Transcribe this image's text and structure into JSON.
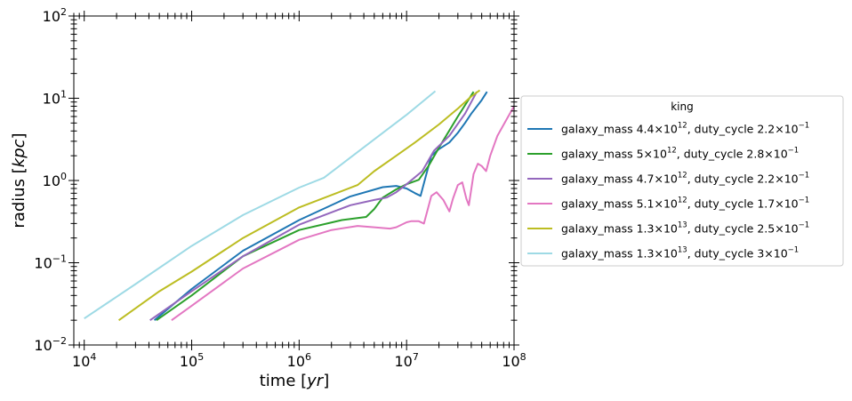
{
  "chart_data": {
    "type": "line",
    "xscale": "log",
    "yscale": "log",
    "xlim": [
      8000,
      100000000
    ],
    "ylim": [
      0.01,
      100
    ],
    "xlabel": {
      "base": "time [",
      "italic": "yr",
      "tail": "]"
    },
    "ylabel": {
      "base": "radius [",
      "italic": "kpc",
      "tail": "]"
    },
    "x_ticks": [
      {
        "value": 10000,
        "mantissa": "10",
        "exp": "4"
      },
      {
        "value": 100000,
        "mantissa": "10",
        "exp": "5"
      },
      {
        "value": 1000000,
        "mantissa": "10",
        "exp": "6"
      },
      {
        "value": 10000000,
        "mantissa": "10",
        "exp": "7"
      },
      {
        "value": 100000000,
        "mantissa": "10",
        "exp": "8"
      }
    ],
    "y_ticks": [
      {
        "value": 0.01,
        "mantissa": "10",
        "exp": "−2"
      },
      {
        "value": 0.1,
        "mantissa": "10",
        "exp": "−1"
      },
      {
        "value": 1,
        "mantissa": "10",
        "exp": "0"
      },
      {
        "value": 10,
        "mantissa": "10",
        "exp": "1"
      },
      {
        "value": 100,
        "mantissa": "10",
        "exp": "2"
      }
    ],
    "legend": {
      "title": "king",
      "placement": "outside-right"
    },
    "series": [
      {
        "name": "galaxy_mass 4.4×10^12, duty_cycle 2.2×10^−1",
        "label_parts": [
          "galaxy_mass 4.4×10",
          "12",
          ", duty_cycle 2.2×10",
          "−1"
        ],
        "color": "#1f77b4",
        "x": [
          45000,
          100000,
          300000,
          1000000,
          3000000,
          6000000,
          8000000,
          10000000,
          12000000,
          13500000,
          15000000,
          17000000,
          20000000,
          25000000,
          30000000,
          35000000,
          40000000,
          50000000,
          56000000
        ],
        "y": [
          0.02,
          0.048,
          0.14,
          0.33,
          0.64,
          0.83,
          0.86,
          0.8,
          0.7,
          0.65,
          1.1,
          2.0,
          2.4,
          2.9,
          3.8,
          5.0,
          6.5,
          9.5,
          12
        ]
      },
      {
        "name": "galaxy_mass 5×10^12, duty_cycle 2.8×10^−1",
        "label_parts": [
          "galaxy_mass 5×10",
          "12",
          ", duty_cycle 2.8×10",
          "−1"
        ],
        "color": "#2ca02c",
        "x": [
          47000,
          100000,
          300000,
          1000000,
          2500000,
          4200000,
          5000000,
          6000000,
          8000000,
          10000000,
          13000000,
          16000000,
          20000000,
          30000000,
          42000000
        ],
        "y": [
          0.02,
          0.04,
          0.12,
          0.25,
          0.33,
          0.36,
          0.45,
          0.62,
          0.78,
          0.9,
          1.02,
          1.5,
          2.5,
          6.0,
          12
        ]
      },
      {
        "name": "galaxy_mass 4.7×10^12, duty_cycle 2.2×10^−1",
        "label_parts": [
          "galaxy_mass 4.7×10",
          "12",
          ", duty_cycle 2.2×10",
          "−1"
        ],
        "color": "#9467bd",
        "x": [
          41000,
          100000,
          300000,
          1000000,
          3000000,
          5000000,
          6500000,
          8000000,
          10000000,
          14000000,
          18000000,
          25000000,
          35000000,
          45000000
        ],
        "y": [
          0.02,
          0.045,
          0.12,
          0.29,
          0.5,
          0.58,
          0.62,
          0.72,
          0.9,
          1.3,
          2.3,
          3.5,
          6.5,
          12
        ]
      },
      {
        "name": "galaxy_mass 5.1×10^12, duty_cycle 1.7×10^−1",
        "label_parts": [
          "galaxy_mass 5.1×10",
          "12",
          ", duty_cycle 1.7×10",
          "−1"
        ],
        "color": "#e377c2",
        "x": [
          65000,
          100000,
          300000,
          1000000,
          2000000,
          3500000,
          5000000,
          7000000,
          8000000,
          10000000,
          11000000,
          13000000,
          14500000,
          17000000,
          19000000,
          22000000,
          25000000,
          27000000,
          30000000,
          33000000,
          36000000,
          38000000,
          42000000,
          46000000,
          50000000,
          55000000,
          60000000,
          70000000,
          85000000,
          100000000
        ],
        "y": [
          0.02,
          0.03,
          0.085,
          0.19,
          0.25,
          0.28,
          0.27,
          0.26,
          0.27,
          0.31,
          0.32,
          0.32,
          0.3,
          0.65,
          0.72,
          0.58,
          0.42,
          0.6,
          0.88,
          0.95,
          0.6,
          0.5,
          1.2,
          1.6,
          1.5,
          1.3,
          2.0,
          3.5,
          5.5,
          8
        ]
      },
      {
        "name": "galaxy_mass 1.3×10^13, duty_cycle 2.5×10^−1",
        "label_parts": [
          "galaxy_mass 1.3×10",
          "13",
          ", duty_cycle 2.5×10",
          "−1"
        ],
        "color": "#bcbd22",
        "x": [
          21000,
          50000,
          100000,
          300000,
          1000000,
          3500000,
          5000000,
          8000000,
          12000000,
          20000000,
          30000000,
          40000000,
          48000000
        ],
        "y": [
          0.02,
          0.045,
          0.078,
          0.2,
          0.47,
          0.88,
          1.3,
          2.0,
          2.9,
          4.8,
          7.5,
          10.5,
          12.5
        ]
      },
      {
        "name": "galaxy_mass 1.3×10^13, duty_cycle 3×10^−1",
        "label_parts": [
          "galaxy_mass 1.3×10",
          "13",
          ", duty_cycle 3×10",
          "−1"
        ],
        "color": "#9edae5",
        "x": [
          10000,
          30000,
          100000,
          300000,
          1000000,
          1700000,
          3000000,
          6000000,
          10000000,
          18500000
        ],
        "y": [
          0.021,
          0.055,
          0.16,
          0.38,
          0.82,
          1.08,
          1.9,
          3.8,
          6.3,
          12.2
        ]
      }
    ]
  }
}
